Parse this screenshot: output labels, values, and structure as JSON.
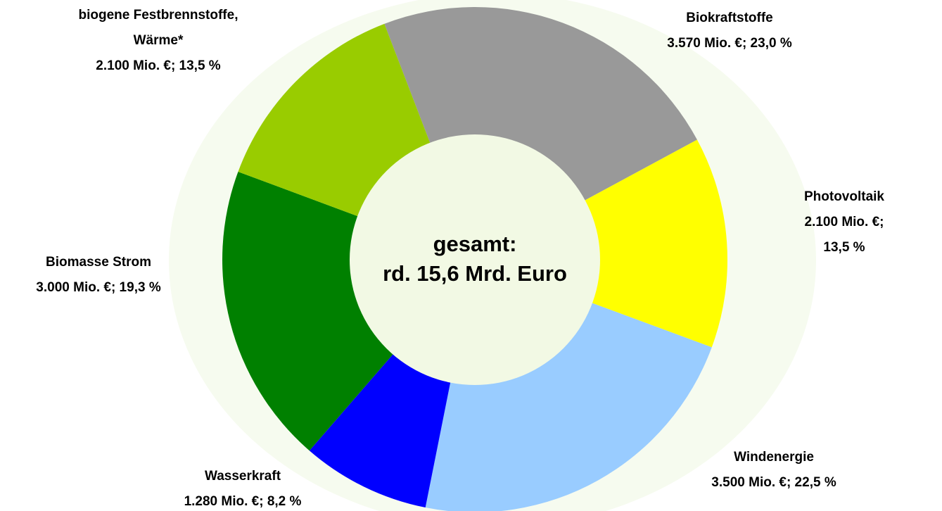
{
  "chart_data": {
    "type": "donut",
    "categories": [
      "Biokraftstoffe",
      "Photovoltaik",
      "Windenergie",
      "Wasserkraft",
      "Biomasse Strom",
      "biogene Festbrennstoffe,\nWärme*"
    ],
    "values": [
      3570,
      2100,
      3500,
      1280,
      3000,
      2100
    ],
    "value_labels": [
      "3.570 Mio. €; 23,0 %",
      "2.100 Mio. €; 13,5 %",
      "3.500 Mio. €; 22,5 %",
      "1.280 Mio. €; 8,2 %",
      "3.000 Mio. €; 19,3 %",
      "2.100 Mio. €; 13,5 %"
    ],
    "colors": [
      "#999999",
      "#ffff00",
      "#99ccff",
      "#0000ff",
      "#008000",
      "#99cc00"
    ],
    "center_label": [
      "gesamt:",
      "rd. 15,6 Mrd. Euro"
    ]
  }
}
